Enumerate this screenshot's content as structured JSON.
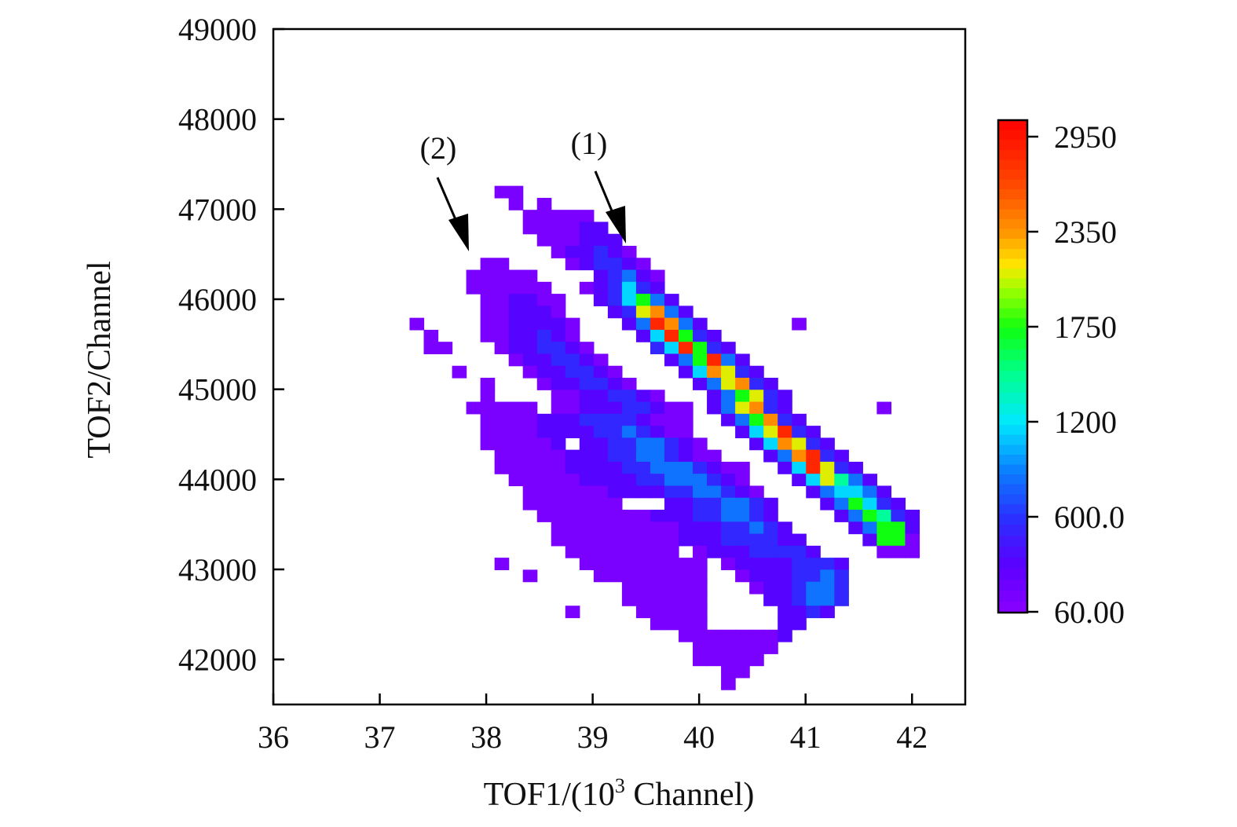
{
  "chart_data": {
    "type": "heatmap",
    "title": "",
    "xlabel_main": "TOF1/(10",
    "xlabel_sup": "3",
    "xlabel_tail": " Channel)",
    "ylabel": "TOF2/Channel",
    "xlim": [
      36,
      42.5
    ],
    "ylim": [
      41500,
      49000
    ],
    "x_ticks": [
      "36",
      "37",
      "38",
      "39",
      "40",
      "41",
      "42"
    ],
    "x_tick_values": [
      36,
      37,
      38,
      39,
      40,
      41,
      42
    ],
    "y_ticks": [
      "42000",
      "43000",
      "44000",
      "45000",
      "46000",
      "47000",
      "48000",
      "49000"
    ],
    "y_tick_values": [
      42000,
      43000,
      44000,
      45000,
      46000,
      47000,
      48000,
      49000
    ],
    "grid": false,
    "bins": {
      "x_start": 37.28,
      "x_width": 0.133,
      "y_top": 47259,
      "y_height": 133.2
    },
    "level_counts": [
      150,
      350,
      550,
      850,
      1150,
      1450,
      1750,
      2100,
      2400,
      2850
    ],
    "rows": [
      "......00............................",
      ".......0.0..........................",
      "........00000.......................",
      "........000011......................",
      ".........000111.....................",
      "..........011210....................",
      ".....00....012210...................",
      "....00000....12310..................",
      "....000000..012421..................",
      ".....001100..124631.................",
      ".....001110...127831................",
      "0....0011110...139831......0........",
      ".0...0011210....149621..............",
      ".00...0112210....249621.............",
      ".......0112210....136931............",
      "...0....0112210....148721...........",
      ".....0...0112210....137821..........",
      ".....0....00112210...136721.........",
      "....00000.0011122100.137821......0..",
      ".....000011122221000..136821........",
      ".....000011112232100...147921.......",
      ".....000001.112233210...148721......",
      "......0000011122332100...138921.....",
      "......000001111223332100..149721....",
      ".......00000111122333210...147531...",
      "........00000011112233210...134431..",
      "........0000000...11223321...136421.",
      ".........00000000111223321....136521",
      "..........00000000011122321....13661",
      "..........000000000111222211....1660",
      "...........00000000.011122221....000",
      "......0.....000000000.011112221.....",
      "........0....00000000..01112232.....",
      "...............000000...0112332.....",
      "...............000000....112332.....",
      "...........0....00000.....1121......",
      ".................0000.....11........",
      "...................00000001.........",
      "....................000000..........",
      "....................00000...........",
      "......................00............",
      "......................0............."
    ],
    "colorbar": {
      "ticks": [
        "60.00",
        "600.0",
        "1200",
        "1750",
        "2350",
        "2950"
      ],
      "tick_values": [
        60,
        600,
        1200,
        1750,
        2350,
        2950
      ],
      "max": 3070,
      "stops": [
        {
          "v": 60,
          "c": "#8a00ff"
        },
        {
          "v": 330,
          "c": "#5a00ff"
        },
        {
          "v": 600,
          "c": "#2a30ff"
        },
        {
          "v": 900,
          "c": "#0a80ff"
        },
        {
          "v": 1200,
          "c": "#00e8ff"
        },
        {
          "v": 1480,
          "c": "#00ff90"
        },
        {
          "v": 1750,
          "c": "#10ff10"
        },
        {
          "v": 2000,
          "c": "#a0ff00"
        },
        {
          "v": 2150,
          "c": "#ffe600"
        },
        {
          "v": 2350,
          "c": "#ff9900"
        },
        {
          "v": 2650,
          "c": "#ff4a00"
        },
        {
          "v": 3070,
          "c": "#ff0000"
        }
      ]
    },
    "annotations": [
      {
        "label": "(1)"
      },
      {
        "label": "(2)"
      }
    ]
  }
}
